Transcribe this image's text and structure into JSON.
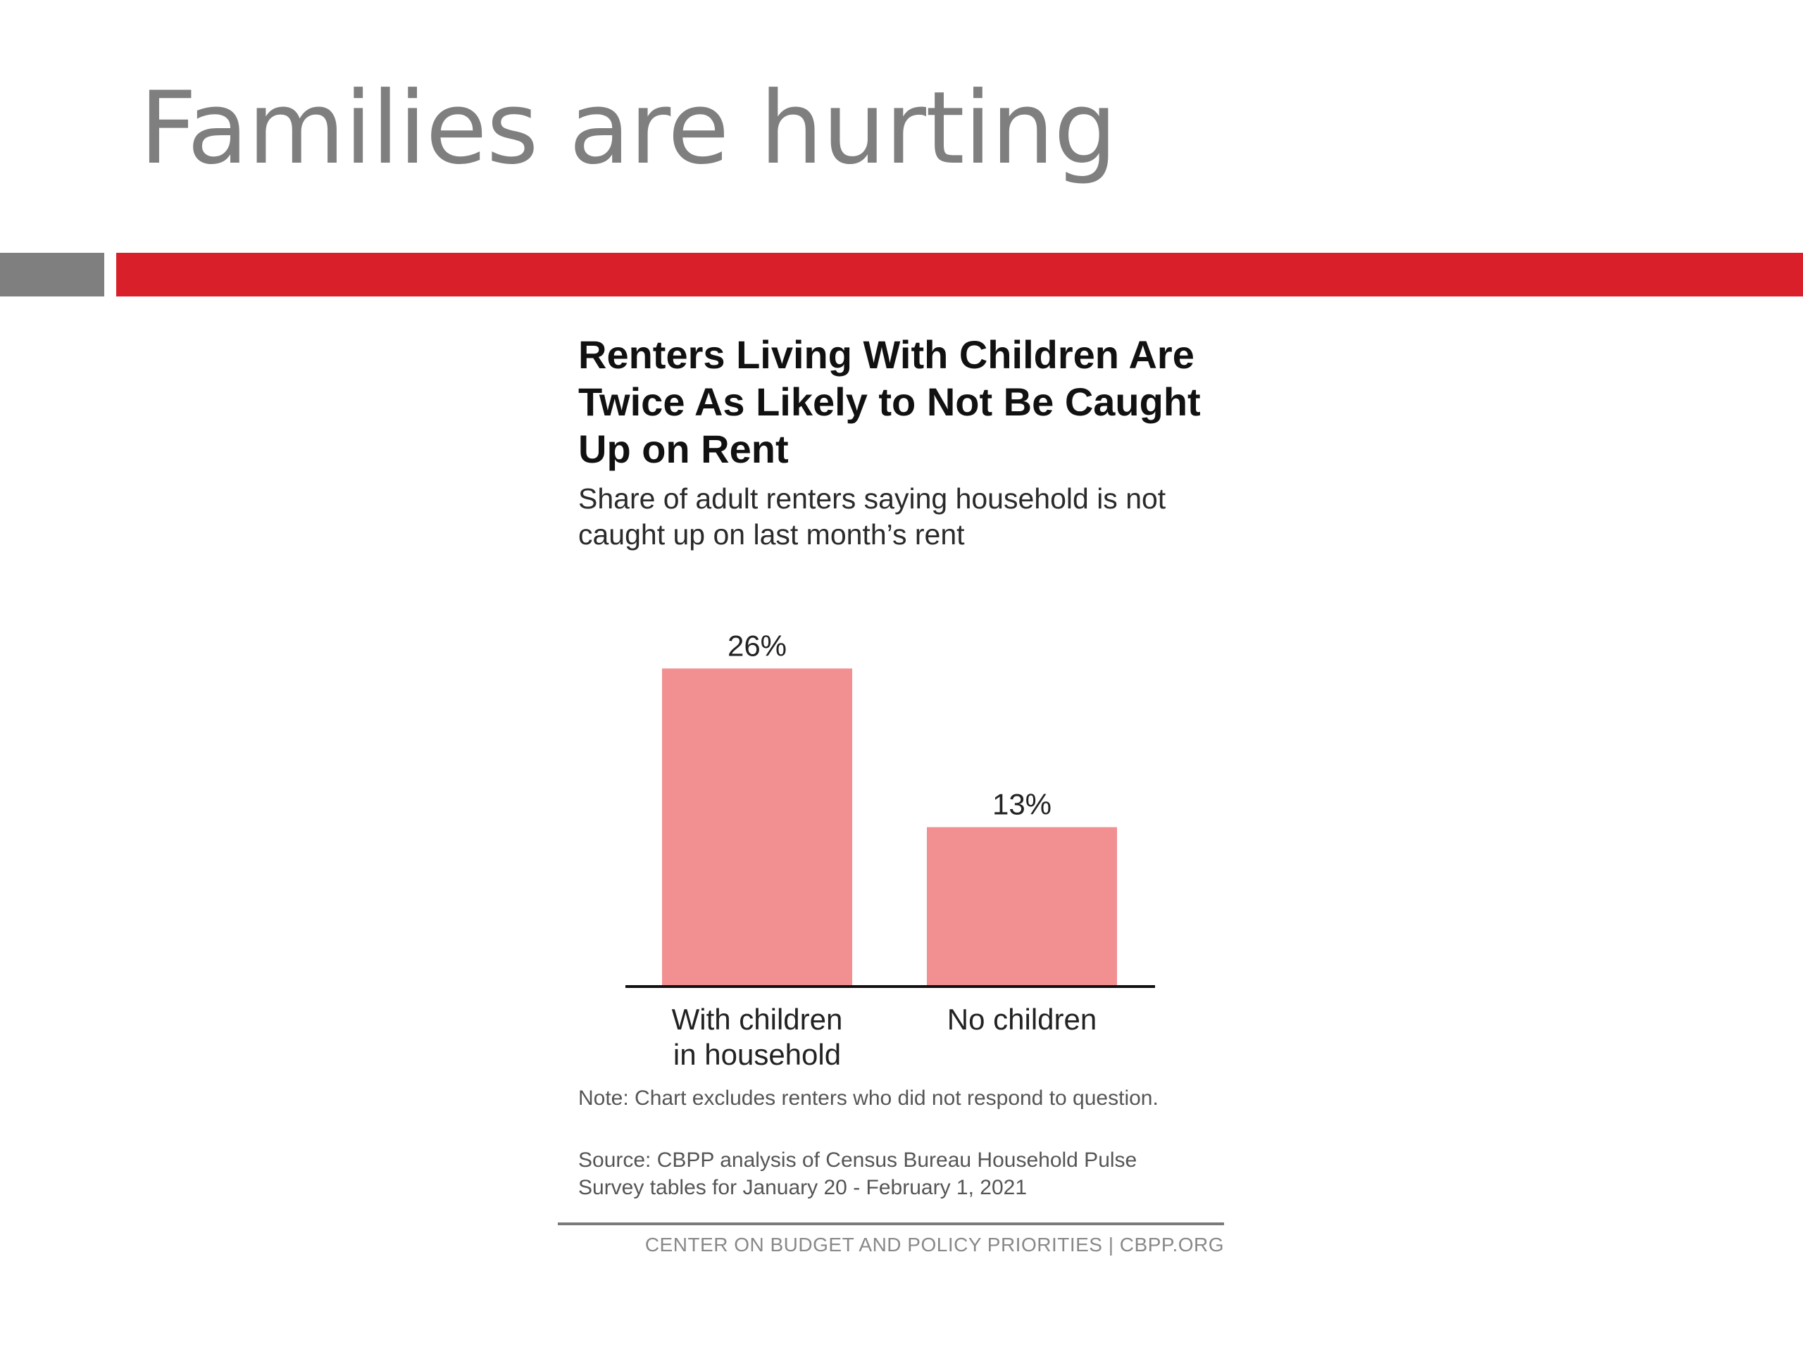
{
  "slide": {
    "title": "Families are hurting",
    "accent_colors": {
      "gray": "#7f7f7f",
      "red": "#d91f29"
    }
  },
  "chart_data": {
    "type": "bar",
    "title": "Renters Living With Children Are Twice As Likely to Not Be Caught Up on Rent",
    "subtitle": "Share of adult renters saying household is not caught up on last month’s rent",
    "categories": [
      [
        "With children",
        "in household"
      ],
      [
        "No children"
      ]
    ],
    "values": [
      26,
      13
    ],
    "value_labels": [
      "26%",
      "13%"
    ],
    "unit": "%",
    "ylim": [
      0,
      30
    ],
    "bar_color": "#f28f91",
    "grid": false,
    "legend": "none",
    "note": "Note: Chart excludes renters who did not respond to question.",
    "source": "Source: CBPP analysis of Census Bureau Household Pulse Survey tables for January 20 - February 1, 2021"
  },
  "footer": {
    "text": "CENTER ON BUDGET AND POLICY PRIORITIES | CBPP.ORG"
  }
}
